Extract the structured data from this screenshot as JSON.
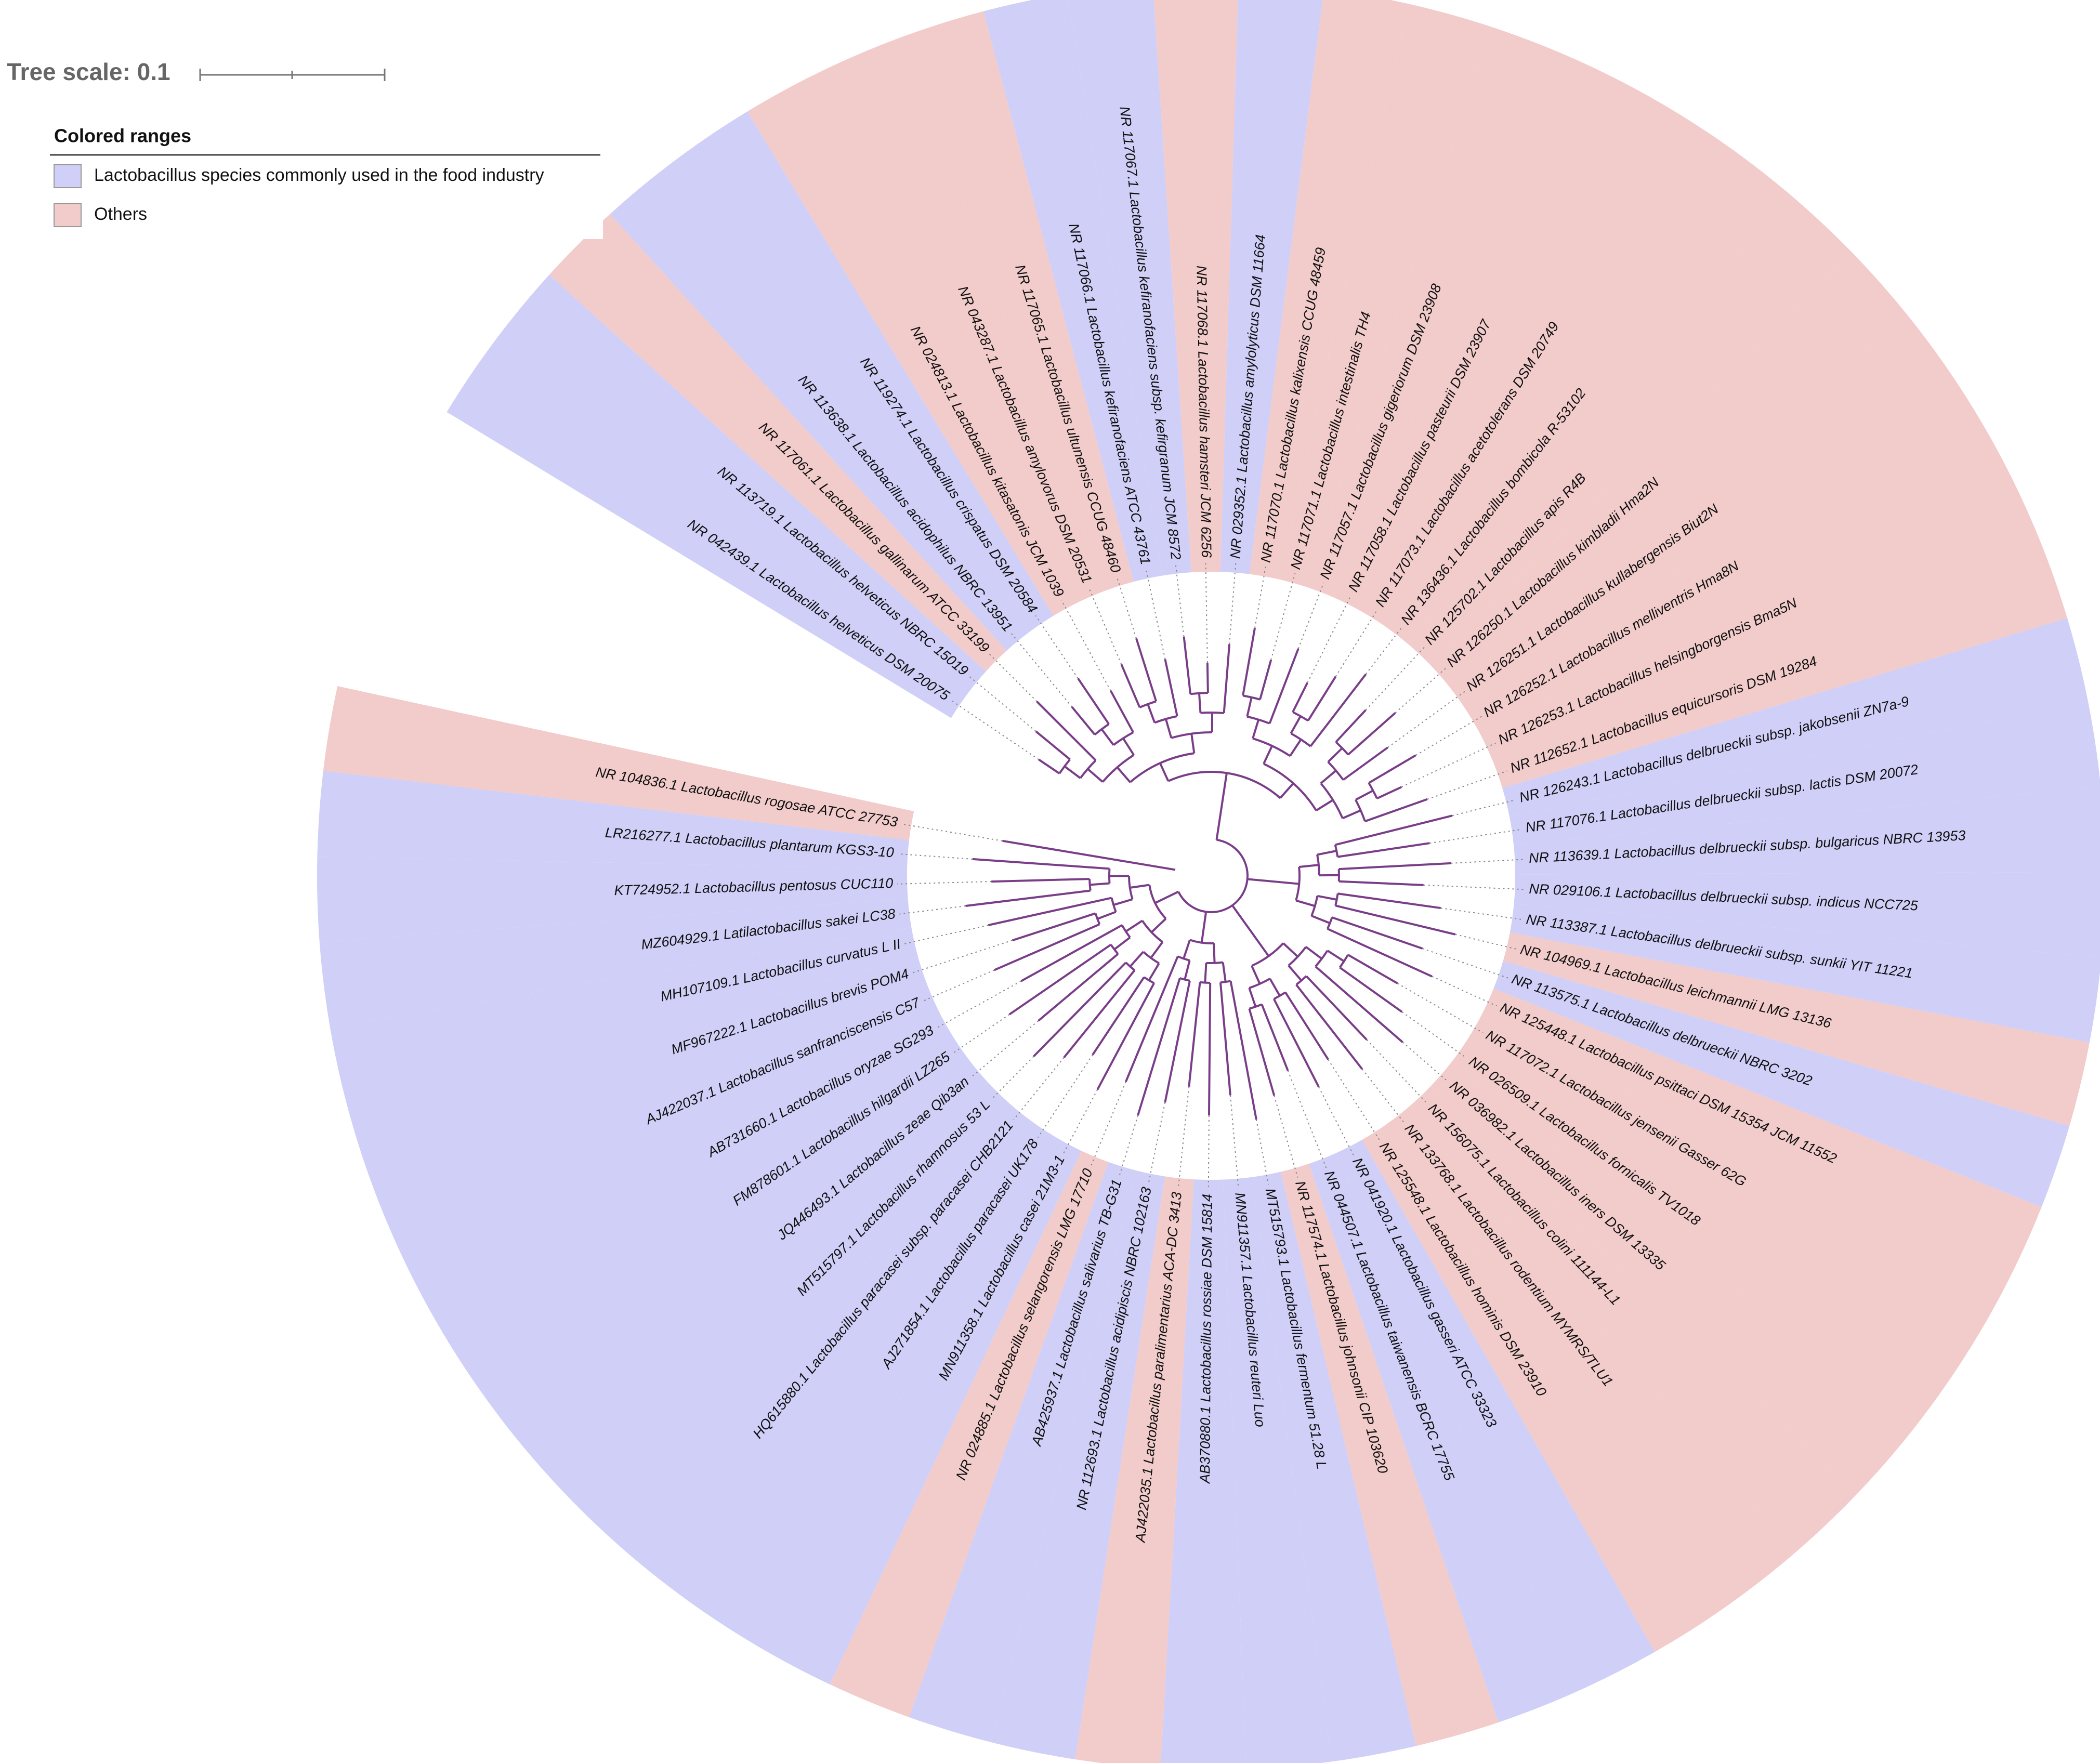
{
  "header": {
    "title": "Tree scale: 0.1"
  },
  "legend": {
    "title": "Colored ranges",
    "items": [
      {
        "label": "Lactobacillus species commonly used in the food industry",
        "color": "#cfcff8"
      },
      {
        "label": "Others",
        "color": "#f2cbcb"
      }
    ]
  },
  "leaves": [
    {
      "label": "NR 042439.1 Lactobacillus helveticus DSM 20075",
      "color": "#cfcff8"
    },
    {
      "label": "NR 113719.1 Lactobacillus helveticus NBRC 15019",
      "color": "#cfcff8"
    },
    {
      "label": "NR 117061.1 Lactobacillus gallinarum ATCC 33199",
      "color": "#f2cbcb"
    },
    {
      "label": "NR 113638.1 Lactobacillus acidophilus NBRC 13951",
      "color": "#cfcff8"
    },
    {
      "label": "NR 119274.1 Lactobacillus crispatus DSM 20584",
      "color": "#cfcff8"
    },
    {
      "label": "NR 024813.1 Lactobacillus kitasatonis JCM 1039",
      "color": "#f2cbcb"
    },
    {
      "label": "NR 043287.1 Lactobacillus amylovorus DSM 20531",
      "color": "#f2cbcb"
    },
    {
      "label": "NR 117065.1 Lactobacillus ultunensis CCUG 48460",
      "color": "#f2cbcb"
    },
    {
      "label": "NR 117066.1 Lactobacillus kefiranofaciens ATCC 43761",
      "color": "#cfcff8"
    },
    {
      "label": "NR 117067.1 Lactobacillus kefiranofaciens subsp. kefirgranum JCM 8572",
      "color": "#cfcff8"
    },
    {
      "label": "NR 117068.1 Lactobacillus hamsteri JCM 6256",
      "color": "#f2cbcb"
    },
    {
      "label": "NR 029352.1 Lactobacillus amylolyticus DSM 11664",
      "color": "#cfcff8"
    },
    {
      "label": "NR 117070.1 Lactobacillus kalixensis CCUG 48459",
      "color": "#f2cbcb"
    },
    {
      "label": "NR 117071.1 Lactobacillus intestinalis TH4",
      "color": "#f2cbcb"
    },
    {
      "label": "NR 117057.1 Lactobacillus gigeriorum DSM 23908",
      "color": "#f2cbcb"
    },
    {
      "label": "NR 117058.1 Lactobacillus pasteurii DSM 23907",
      "color": "#f2cbcb"
    },
    {
      "label": "NR 117073.1 Lactobacillus acetotolerans DSM 20749",
      "color": "#f2cbcb"
    },
    {
      "label": "NR 136436.1 Lactobacillus bombicola R-53102",
      "color": "#f2cbcb"
    },
    {
      "label": "NR 125702.1 Lactobacillus apis R4B",
      "color": "#f2cbcb"
    },
    {
      "label": "NR 126250.1 Lactobacillus kimbladii Hma2N",
      "color": "#f2cbcb"
    },
    {
      "label": "NR 126251.1 Lactobacillus kullabergensis Biut2N",
      "color": "#f2cbcb"
    },
    {
      "label": "NR 126252.1 Lactobacillus melliventris Hma8N",
      "color": "#f2cbcb"
    },
    {
      "label": "NR 126253.1 Lactobacillus helsingborgensis Bma5N",
      "color": "#f2cbcb"
    },
    {
      "label": "NR 112652.1 Lactobacillus equicursoris DSM 19284",
      "color": "#f2cbcb"
    },
    {
      "label": "NR 126243.1 Lactobacillus delbrueckii subsp. jakobsenii ZN7a-9",
      "color": "#cfcff8"
    },
    {
      "label": "NR 117076.1 Lactobacillus delbrueckii subsp. lactis DSM 20072",
      "color": "#cfcff8"
    },
    {
      "label": "NR 113639.1 Lactobacillus delbrueckii subsp. bulgaricus NBRC 13953",
      "color": "#cfcff8"
    },
    {
      "label": "NR 029106.1 Lactobacillus delbrueckii subsp. indicus NCC725",
      "color": "#cfcff8"
    },
    {
      "label": "NR 113387.1 Lactobacillus delbrueckii subsp. sunkii YIT 11221",
      "color": "#cfcff8"
    },
    {
      "label": "NR 104969.1 Lactobacillus leichmannii LMG 13136",
      "color": "#f2cbcb"
    },
    {
      "label": "NR 113575.1 Lactobacillus delbrueckii NBRC 3202",
      "color": "#cfcff8"
    },
    {
      "label": "NR 125448.1 Lactobacillus psittaci DSM 15354 JCM 11552",
      "color": "#f2cbcb"
    },
    {
      "label": "NR 117072.1 Lactobacillus jensenii Gasser 62G",
      "color": "#f2cbcb"
    },
    {
      "label": "NR 026509.1 Lactobacillus fornicalis TV1018",
      "color": "#f2cbcb"
    },
    {
      "label": "NR 036982.1 Lactobacillus iners DSM 13335",
      "color": "#f2cbcb"
    },
    {
      "label": "NR 156075.1 Lactobacillus colini 111144-L1",
      "color": "#f2cbcb"
    },
    {
      "label": "NR 133768.1 Lactobacillus rodentium MYMRS/TLU1",
      "color": "#f2cbcb"
    },
    {
      "label": "NR 125548.1 Lactobacillus hominis DSM 23910",
      "color": "#f2cbcb"
    },
    {
      "label": "NR 041920.1 Lactobacillus gasseri ATCC 33323",
      "color": "#cfcff8"
    },
    {
      "label": "NR 044507.1 Lactobacillus taiwanensis BCRC 17755",
      "color": "#cfcff8"
    },
    {
      "label": "NR 117574.1 Lactobacillus johnsonii CIP 103620",
      "color": "#f2cbcb"
    },
    {
      "label": "MT515793.1 Lactobacillus fermentum 51.28 L",
      "color": "#cfcff8"
    },
    {
      "label": "MN911357.1 Lactobacillus reuteri Luo",
      "color": "#cfcff8"
    },
    {
      "label": "AB370880.1 Lactobacillus rossiae DSM 15814",
      "color": "#cfcff8"
    },
    {
      "label": "AJ422035.1 Lactobacillus paralimentarius ACA-DC 3413",
      "color": "#f2cbcb"
    },
    {
      "label": "NR 112693.1 Lactobacillus acidipiscis NBRC 102163",
      "color": "#cfcff8"
    },
    {
      "label": "AB425937.1 Lactobacillus salivarius TB-G31",
      "color": "#cfcff8"
    },
    {
      "label": "NR 024885.1 Lactobacillus selangorensis LMG 17710",
      "color": "#f2cbcb"
    },
    {
      "label": "MN911358.1 Lactobacillus casei 21M3-1",
      "color": "#cfcff8"
    },
    {
      "label": "AJ271854.1 Lactobacillus paracasei UK178",
      "color": "#cfcff8"
    },
    {
      "label": "HQ615880.1 Lactobacillus paracasei subsp. paracasei CHB2121",
      "color": "#cfcff8"
    },
    {
      "label": "MT515797.1 Lactobacillus rhamnosus 53 L",
      "color": "#cfcff8"
    },
    {
      "label": "JQ446493.1 Lactobacillus zeae Qib3an",
      "color": "#cfcff8"
    },
    {
      "label": "FM878601.1 Lactobacillus hilgardii LZ265",
      "color": "#cfcff8"
    },
    {
      "label": "AB731660.1 Lactobacillus oryzae SG293",
      "color": "#cfcff8"
    },
    {
      "label": "AJ422037.1 Lactobacillus sanfranciscensis C57",
      "color": "#cfcff8"
    },
    {
      "label": "MF967222.1 Lactobacillus brevis POM4",
      "color": "#cfcff8"
    },
    {
      "label": "MH107109.1 Lactobacillus curvatus L II",
      "color": "#cfcff8"
    },
    {
      "label": "MZ604929.1 Latilactobacillus sakei LC38",
      "color": "#cfcff8"
    },
    {
      "label": "KT724952.1 Lactobacillus pentosus CUC110",
      "color": "#cfcff8"
    },
    {
      "label": "LR216277.1 Lactobacillus plantarum KGS3-10",
      "color": "#cfcff8"
    },
    {
      "label": "NR 104836.1 Lactobacillus rogosae ATCC 27753",
      "color": "#f2cbcb"
    }
  ]
}
